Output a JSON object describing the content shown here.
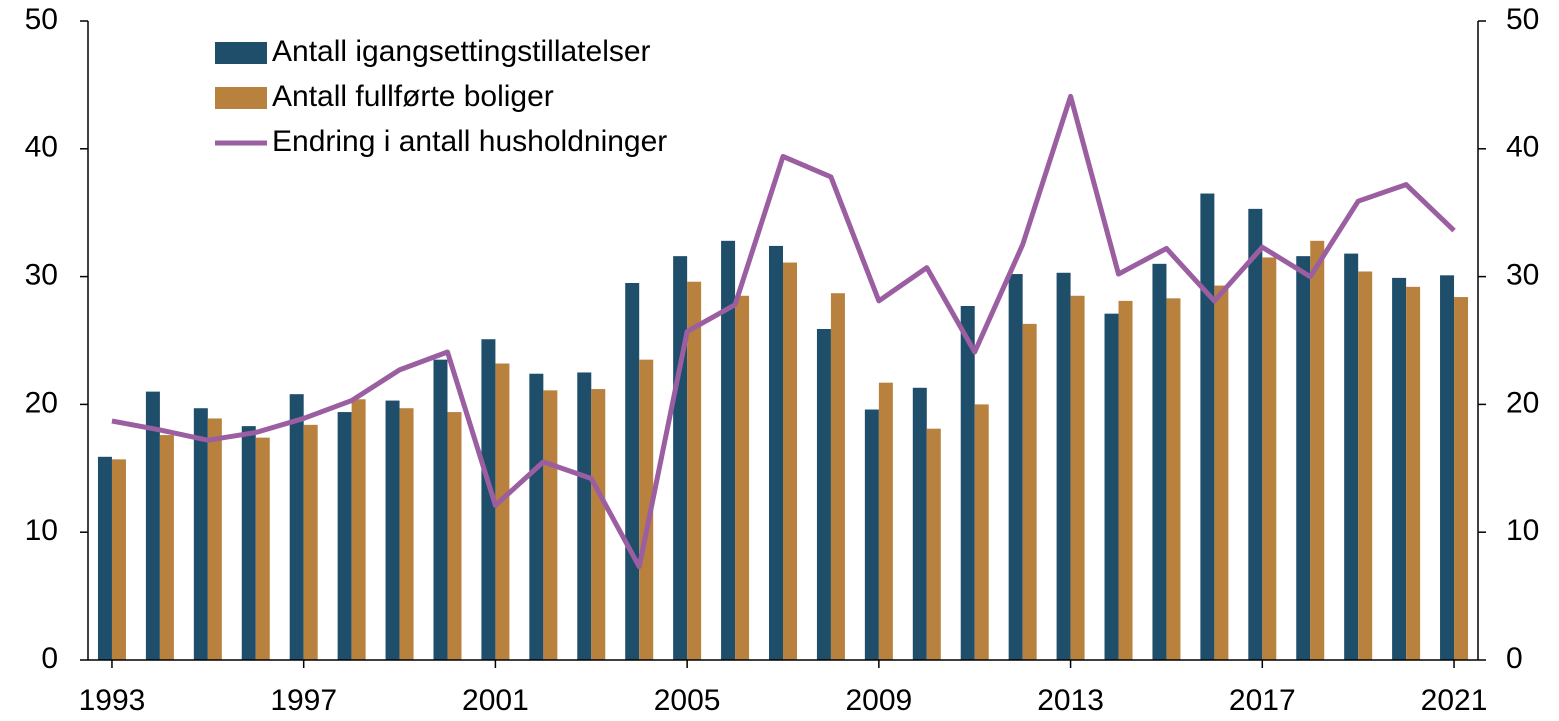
{
  "chart_data": {
    "type": "bar-line",
    "categories": [
      "1993",
      null,
      null,
      null,
      "1997",
      null,
      null,
      null,
      "2001",
      null,
      null,
      null,
      "2005",
      null,
      null,
      null,
      "2009",
      null,
      null,
      null,
      "2013",
      null,
      null,
      null,
      "2017",
      null,
      null,
      null,
      "2021"
    ],
    "series": [
      {
        "name": "Antall igangsettingstillatelser",
        "type": "bar",
        "color": "#1f4e6b",
        "values": [
          15.9,
          21.0,
          19.7,
          18.3,
          20.8,
          19.4,
          20.3,
          23.5,
          25.1,
          22.4,
          22.5,
          29.5,
          31.6,
          32.8,
          32.4,
          25.9,
          19.6,
          21.3,
          27.7,
          30.2,
          30.3,
          27.1,
          31.0,
          36.5,
          35.3,
          31.6,
          31.8,
          29.9,
          30.1
        ]
      },
      {
        "name": "Antall fullførte boliger",
        "type": "bar",
        "color": "#b8813e",
        "values": [
          15.7,
          17.6,
          18.9,
          17.4,
          18.4,
          20.4,
          19.7,
          19.4,
          23.2,
          21.1,
          21.2,
          23.5,
          29.6,
          28.5,
          31.1,
          28.7,
          21.7,
          18.1,
          20.0,
          26.3,
          28.5,
          28.1,
          28.3,
          29.3,
          31.5,
          32.8,
          30.4,
          29.2,
          28.4
        ]
      },
      {
        "name": "Endring i antall husholdninger",
        "type": "line",
        "axis": "y2",
        "color": "#9a5ea1",
        "values": [
          18.7,
          18.0,
          17.2,
          17.8,
          18.9,
          20.3,
          22.7,
          24.1,
          12.1,
          15.5,
          14.2,
          7.3,
          25.7,
          27.8,
          39.4,
          37.8,
          28.1,
          30.7,
          24.1,
          32.5,
          44.1,
          30.2,
          32.2,
          28.1,
          32.3,
          30.0,
          35.9,
          37.2,
          33.6
        ]
      }
    ],
    "ylim": [
      0,
      50
    ],
    "yticks": [
      0,
      10,
      20,
      30,
      40,
      50
    ],
    "y2lim": [
      0,
      50
    ],
    "y2ticks": [
      0,
      10,
      20,
      30,
      40,
      50
    ],
    "legend": "upper left"
  }
}
